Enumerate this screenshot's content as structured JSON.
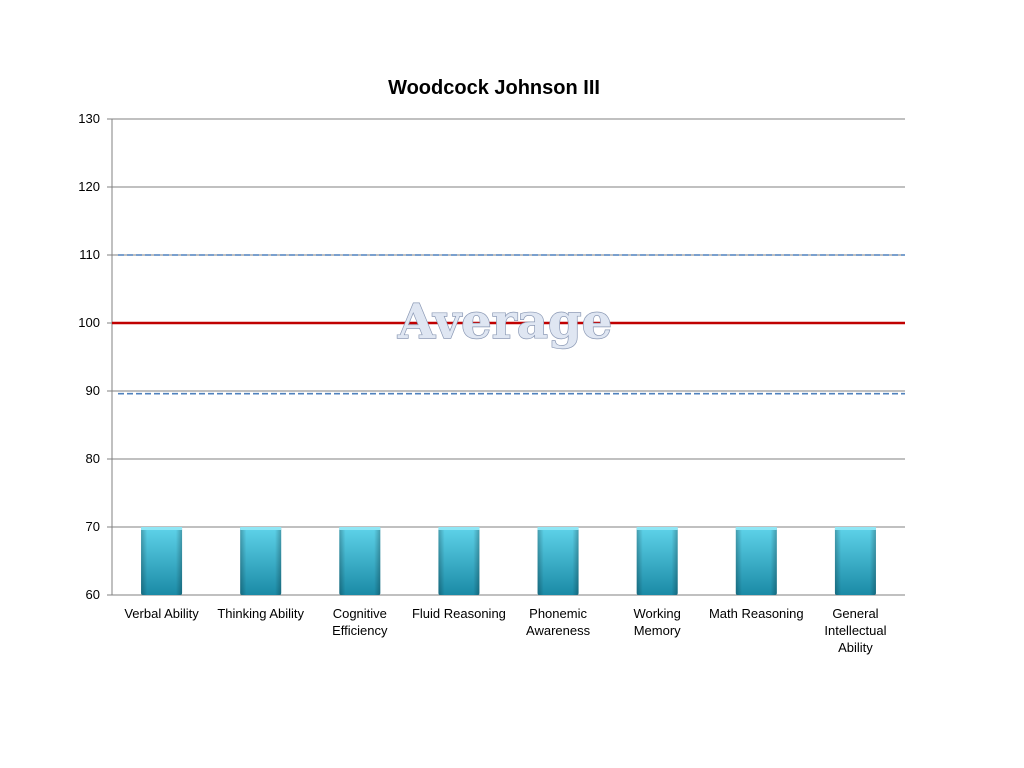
{
  "chart_data": {
    "type": "bar",
    "title": "Woodcock Johnson III",
    "categories": [
      [
        "Verbal Ability"
      ],
      [
        "Thinking Ability"
      ],
      [
        "Cognitive",
        "Efficiency"
      ],
      [
        "Fluid Reasoning"
      ],
      [
        "Phonemic",
        "Awareness"
      ],
      [
        "Working",
        "Memory"
      ],
      [
        "Math Reasoning"
      ],
      [
        "General",
        "Intellectual",
        "Ability"
      ]
    ],
    "values": [
      70,
      70,
      70,
      70,
      70,
      70,
      70,
      70
    ],
    "ylim": [
      60,
      130
    ],
    "yticks": [
      60,
      70,
      80,
      90,
      100,
      110,
      120,
      130
    ],
    "grid": true,
    "reference_lines": [
      {
        "value": 110,
        "style": "dashed",
        "color": "#4f81bd"
      },
      {
        "value": 100,
        "style": "solid",
        "color": "#c00000"
      },
      {
        "value": 89.6,
        "style": "dashed",
        "color": "#4f81bd"
      }
    ],
    "annotation": {
      "text": "Average",
      "value": 100
    },
    "colors": {
      "bar_top": "#5fd3ea",
      "bar_bottom": "#1b8aa6",
      "grid": "#808080"
    }
  }
}
